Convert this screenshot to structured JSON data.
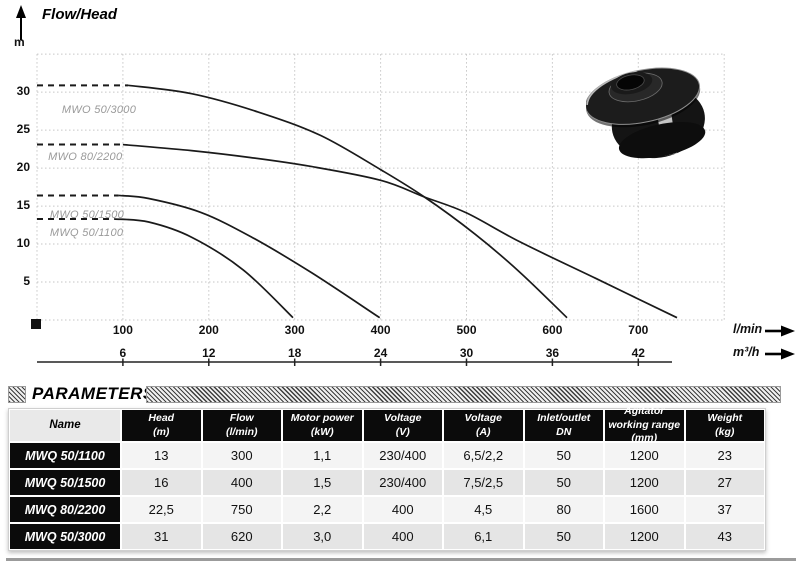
{
  "chart_data": {
    "type": "line",
    "title": "Flow/Head",
    "ylabel": "m",
    "xlabel_primary": "l/min",
    "xlabel_secondary": "m³/h",
    "xlim_lmin": [
      0,
      800
    ],
    "ylim_m": [
      0,
      35
    ],
    "grid": true,
    "x_ticks_lmin": [
      "100",
      "200",
      "300",
      "400",
      "500",
      "600",
      "700"
    ],
    "x_ticks_m3h": [
      "6",
      "12",
      "18",
      "24",
      "30",
      "36",
      "42"
    ],
    "y_ticks_m": [
      "30",
      "25",
      "20",
      "15",
      "10",
      "5"
    ],
    "legend_position": "labels-near-curves",
    "series": [
      {
        "name": "MWO 50/3000",
        "label_pos": [
          29,
          28.4
        ],
        "dashed": [
          [
            0,
            30.9
          ],
          [
            106,
            30.9
          ]
        ],
        "points": [
          [
            106,
            30.9
          ],
          [
            180,
            29.8
          ],
          [
            257,
            27.4
          ],
          [
            330,
            24.3
          ],
          [
            400,
            19.8
          ],
          [
            451,
            16.2
          ],
          [
            510,
            11.3
          ],
          [
            562,
            6.3
          ],
          [
            617,
            0.3
          ]
        ]
      },
      {
        "name": "MWO 80/2200",
        "label_pos": [
          13,
          22.2
        ],
        "dashed": [
          [
            0,
            23.1
          ],
          [
            100,
            23.1
          ]
        ],
        "points": [
          [
            100,
            23.1
          ],
          [
            180,
            22.3
          ],
          [
            248,
            21.4
          ],
          [
            320,
            20.2
          ],
          [
            400,
            18.4
          ],
          [
            451,
            16.2
          ],
          [
            500,
            14.1
          ],
          [
            562,
            10.3
          ],
          [
            650,
            5.5
          ],
          [
            745,
            0.3
          ]
        ]
      },
      {
        "name": "MWO 50/1500",
        "label_pos": [
          15,
          14.6
        ],
        "dashed": [
          [
            0,
            16.4
          ],
          [
            95,
            16.4
          ]
        ],
        "points": [
          [
            95,
            16.4
          ],
          [
            130,
            16.0
          ],
          [
            190,
            14.2
          ],
          [
            250,
            10.9
          ],
          [
            320,
            6.2
          ],
          [
            399,
            0.3
          ]
        ]
      },
      {
        "name": "MWQ 50/1100",
        "label_pos": [
          15,
          12.3
        ],
        "dashed": [
          [
            0,
            13.3
          ],
          [
            90,
            13.3
          ]
        ],
        "points": [
          [
            90,
            13.3
          ],
          [
            130,
            12.9
          ],
          [
            180,
            10.9
          ],
          [
            240,
            6.6
          ],
          [
            298,
            0.3
          ]
        ]
      }
    ]
  },
  "parameters": {
    "section_title": "PARAMETERS",
    "table": {
      "columns": [
        {
          "lines": [
            "Name"
          ]
        },
        {
          "lines": [
            "Head",
            "(m)"
          ]
        },
        {
          "lines": [
            "Flow",
            "(l/min)"
          ]
        },
        {
          "lines": [
            "Motor power",
            "(kW)"
          ]
        },
        {
          "lines": [
            "Voltage",
            "(V)"
          ]
        },
        {
          "lines": [
            "Voltage",
            "(A)"
          ]
        },
        {
          "lines": [
            "Inlet/outlet",
            "DN"
          ]
        },
        {
          "lines": [
            "Agitator",
            "working range",
            "(mm)"
          ]
        },
        {
          "lines": [
            "Weight",
            "(kg)"
          ]
        }
      ],
      "rows": [
        [
          "MWQ 50/1100",
          "13",
          "300",
          "1,1",
          "230/400",
          "6,5/2,2",
          "50",
          "1200",
          "23"
        ],
        [
          "MWQ 50/1500",
          "16",
          "400",
          "1,5",
          "230/400",
          "7,5/2,5",
          "50",
          "1200",
          "27"
        ],
        [
          "MWQ 80/2200",
          "22,5",
          "750",
          "2,2",
          "400",
          "4,5",
          "80",
          "1600",
          "37"
        ],
        [
          "MWQ 50/3000",
          "31",
          "620",
          "3,0",
          "400",
          "6,1",
          "50",
          "1200",
          "43"
        ]
      ]
    }
  },
  "colors": {
    "curve": "#1a1a1a",
    "grid": "#c6c6c6",
    "curve_label": "#9a9a9a",
    "table_header_bg": "#0b0b0b",
    "row_light": "#f4f4f4",
    "row_dark": "#e5e5e5"
  }
}
